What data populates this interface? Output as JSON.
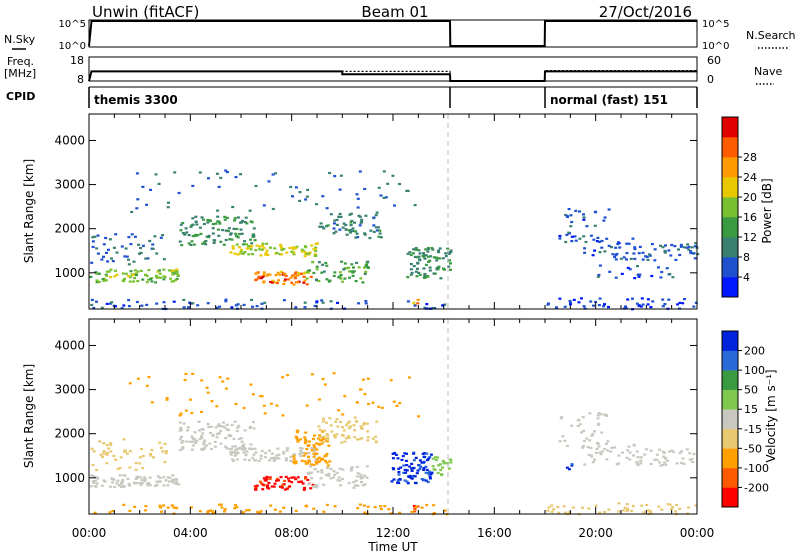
{
  "header": {
    "title": "Unwin (fitACF)",
    "beam": "Beam 01",
    "date": "27/Oct/2016"
  },
  "top_panels": {
    "nsky_label": "N.Sky",
    "nsky_ticks": [
      "10^5",
      "10^0"
    ],
    "nsearch_label": "N.Search",
    "freq_label": "Freq.",
    "freq_unit": "[MHz]",
    "freq_ticks": [
      "18",
      "8"
    ],
    "nave_ticks": [
      "60",
      "0"
    ],
    "nave_label": "Nave",
    "cpid_label": "CPID",
    "cpid_segments": [
      {
        "label": "themis 3300",
        "start": 0.0,
        "end": 14.25
      },
      {
        "label": "normal (fast) 151",
        "start": 18.0,
        "end": 24.0
      }
    ]
  },
  "colors": {
    "power": [
      "#0018ff",
      "#1e50d0",
      "#3a8070",
      "#3a9a40",
      "#78c030",
      "#e8c800",
      "#ff9a00",
      "#ff5c00",
      "#e00000"
    ],
    "velocity": [
      "#ff0000",
      "#ff5a00",
      "#ffa000",
      "#e8c870",
      "#c8c8c0",
      "#7ec850",
      "#3a9a40",
      "#2a6ad8",
      "#0022dd"
    ],
    "ground_scatter": "#c8c8c0"
  },
  "chart_data": [
    {
      "type": "line",
      "panel": "N.Sky / N.Search",
      "x_unit": "hours UT",
      "xlim": [
        0,
        24
      ],
      "series": [
        {
          "name": "N.Sky",
          "x": [
            0.0,
            0.1,
            0.6,
            14.25,
            14.26,
            17.99,
            18.0,
            18.2,
            24.0
          ],
          "y": [
            1,
            100000,
            100000,
            100000,
            1,
            1,
            100000,
            100000,
            100000
          ]
        }
      ]
    },
    {
      "type": "line",
      "panel": "Freq. / Nave",
      "x_unit": "hours UT",
      "xlim": [
        0,
        24
      ],
      "ylim_freq_mhz": [
        8,
        18
      ],
      "ylim_nave": [
        0,
        60
      ],
      "series": [
        {
          "name": "Freq.",
          "x": [
            0.0,
            0.1,
            10.0,
            10.0,
            14.25,
            14.26,
            17.99,
            18.0,
            24.0
          ],
          "y": [
            8,
            12,
            12,
            10.8,
            10.8,
            8,
            8,
            12,
            12
          ]
        },
        {
          "name": "Nave",
          "x": [
            0.0,
            0.1,
            14.25,
            14.26,
            17.99,
            18.0,
            24.0
          ],
          "y": [
            0,
            24,
            24,
            0,
            0,
            26,
            26
          ]
        }
      ]
    },
    {
      "type": "heatmap",
      "panel": "power",
      "title": "",
      "xlabel": "",
      "ylabel": "Slant Range [km]",
      "colorbar_label": "Power [dB]",
      "colorbar_ticks": [
        4,
        8,
        12,
        16,
        20,
        24,
        28
      ],
      "x_unit": "hours UT",
      "xlim": [
        0,
        24
      ],
      "ylim": [
        180,
        4600
      ],
      "yticks": [
        1000,
        2000,
        3000,
        4000
      ],
      "regions": [
        {
          "x": [
            0.0,
            3.5
          ],
          "y": [
            800,
            1100
          ],
          "value": 18,
          "density": 0.85
        },
        {
          "x": [
            0.0,
            3.0
          ],
          "y": [
            1200,
            1900
          ],
          "value": 8,
          "density": 0.25
        },
        {
          "x": [
            3.5,
            6.5
          ],
          "y": [
            1650,
            2300
          ],
          "value": 12,
          "density": 0.55
        },
        {
          "x": [
            5.5,
            9.0
          ],
          "y": [
            1400,
            1700
          ],
          "value": 20,
          "density": 0.8
        },
        {
          "x": [
            6.5,
            8.8
          ],
          "y": [
            750,
            1050
          ],
          "value": 28,
          "density": 0.9
        },
        {
          "x": [
            8.5,
            11.0
          ],
          "y": [
            800,
            1300
          ],
          "value": 14,
          "density": 0.5
        },
        {
          "x": [
            9.0,
            11.5
          ],
          "y": [
            1800,
            2400
          ],
          "value": 10,
          "density": 0.45
        },
        {
          "x": [
            12.5,
            14.25
          ],
          "y": [
            900,
            1600
          ],
          "value": 12,
          "density": 0.75
        },
        {
          "x": [
            12.7,
            13.0
          ],
          "y": [
            250,
            450
          ],
          "value": 28,
          "density": 0.9
        },
        {
          "x": [
            0.0,
            14.25
          ],
          "y": [
            200,
            420
          ],
          "value": 6,
          "density": 0.25
        },
        {
          "x": [
            1.5,
            13.0
          ],
          "y": [
            2400,
            3400
          ],
          "value": 8,
          "density": 0.06
        },
        {
          "x": [
            18.5,
            20.5
          ],
          "y": [
            1700,
            2500
          ],
          "value": 6,
          "density": 0.25
        },
        {
          "x": [
            19.5,
            21.5
          ],
          "y": [
            1300,
            1800
          ],
          "value": 6,
          "density": 0.35
        },
        {
          "x": [
            21.5,
            24.0
          ],
          "y": [
            1300,
            1700
          ],
          "value": 8,
          "density": 0.45
        },
        {
          "x": [
            20.0,
            23.0
          ],
          "y": [
            900,
            1200
          ],
          "value": 6,
          "density": 0.25
        },
        {
          "x": [
            18.0,
            24.0
          ],
          "y": [
            200,
            450
          ],
          "value": 5,
          "density": 0.35
        }
      ]
    },
    {
      "type": "heatmap",
      "panel": "velocity",
      "title": "",
      "xlabel": "Time UT",
      "ylabel": "Slant Range [km]",
      "colorbar_label": "Velocity [m s⁻¹]",
      "colorbar_ticks": [
        200,
        100,
        50,
        15,
        -15,
        -50,
        -100,
        -200
      ],
      "x_unit": "hours UT",
      "xlim": [
        0,
        24
      ],
      "xticks": [
        "00:00",
        "04:00",
        "08:00",
        "12:00",
        "16:00",
        "20:00",
        "00:00"
      ],
      "ylim": [
        180,
        4600
      ],
      "yticks": [
        1000,
        2000,
        3000,
        4000
      ],
      "regions": [
        {
          "x": [
            0.0,
            3.5
          ],
          "y": [
            800,
            1100
          ],
          "value": 0,
          "density": 0.85
        },
        {
          "x": [
            0.0,
            3.0
          ],
          "y": [
            1200,
            1900
          ],
          "value": -30,
          "density": 0.25
        },
        {
          "x": [
            3.5,
            6.5
          ],
          "y": [
            1650,
            2300
          ],
          "value": 0,
          "density": 0.55
        },
        {
          "x": [
            5.5,
            9.0
          ],
          "y": [
            1400,
            1700
          ],
          "value": 0,
          "density": 0.8
        },
        {
          "x": [
            8.0,
            9.5
          ],
          "y": [
            1300,
            2100
          ],
          "value": -80,
          "density": 0.7
        },
        {
          "x": [
            6.5,
            8.8
          ],
          "y": [
            750,
            1050
          ],
          "value": -220,
          "density": 0.9
        },
        {
          "x": [
            8.5,
            11.0
          ],
          "y": [
            800,
            1300
          ],
          "value": 0,
          "density": 0.5
        },
        {
          "x": [
            9.0,
            11.5
          ],
          "y": [
            1800,
            2400
          ],
          "value": -40,
          "density": 0.45
        },
        {
          "x": [
            11.8,
            13.5
          ],
          "y": [
            900,
            1600
          ],
          "value": 220,
          "density": 0.8
        },
        {
          "x": [
            13.5,
            14.25
          ],
          "y": [
            1000,
            1500
          ],
          "value": 40,
          "density": 0.7
        },
        {
          "x": [
            12.7,
            13.0
          ],
          "y": [
            250,
            450
          ],
          "value": -220,
          "density": 0.9
        },
        {
          "x": [
            0.0,
            14.25
          ],
          "y": [
            200,
            420
          ],
          "value": -60,
          "density": 0.25
        },
        {
          "x": [
            1.5,
            13.0
          ],
          "y": [
            2400,
            3400
          ],
          "value": -80,
          "density": 0.06
        },
        {
          "x": [
            18.5,
            20.5
          ],
          "y": [
            1700,
            2500
          ],
          "value": 0,
          "density": 0.25
        },
        {
          "x": [
            19.5,
            21.5
          ],
          "y": [
            1300,
            1800
          ],
          "value": 0,
          "density": 0.35
        },
        {
          "x": [
            21.5,
            24.0
          ],
          "y": [
            1300,
            1700
          ],
          "value": 0,
          "density": 0.45
        },
        {
          "x": [
            18.8,
            19.1
          ],
          "y": [
            1150,
            1350
          ],
          "value": 220,
          "density": 0.8
        },
        {
          "x": [
            18.0,
            24.0
          ],
          "y": [
            200,
            450
          ],
          "value": -40,
          "density": 0.35
        }
      ]
    }
  ]
}
